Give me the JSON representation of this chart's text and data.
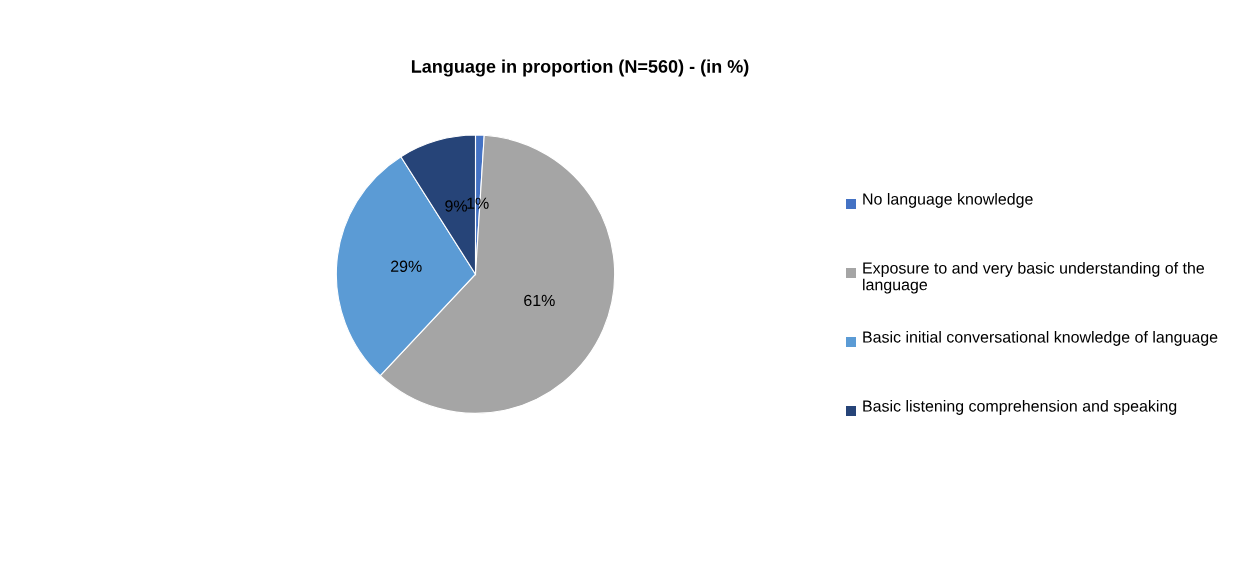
{
  "chart_data": {
    "type": "pie",
    "title": "Language in proportion (N=560) - (in %)",
    "categories": [
      "No language knowledge",
      "Exposure to and very basic understanding of the language",
      "Basic initial conversational knowledge of language",
      "Basic listening comprehension and speaking"
    ],
    "values": [
      1,
      61,
      29,
      9
    ],
    "colors": [
      "#4472c4",
      "#a5a5a5",
      "#5b9bd5",
      "#264478"
    ],
    "value_labels": [
      "1%",
      "61%",
      "29%",
      "9%"
    ],
    "legend": "right"
  }
}
